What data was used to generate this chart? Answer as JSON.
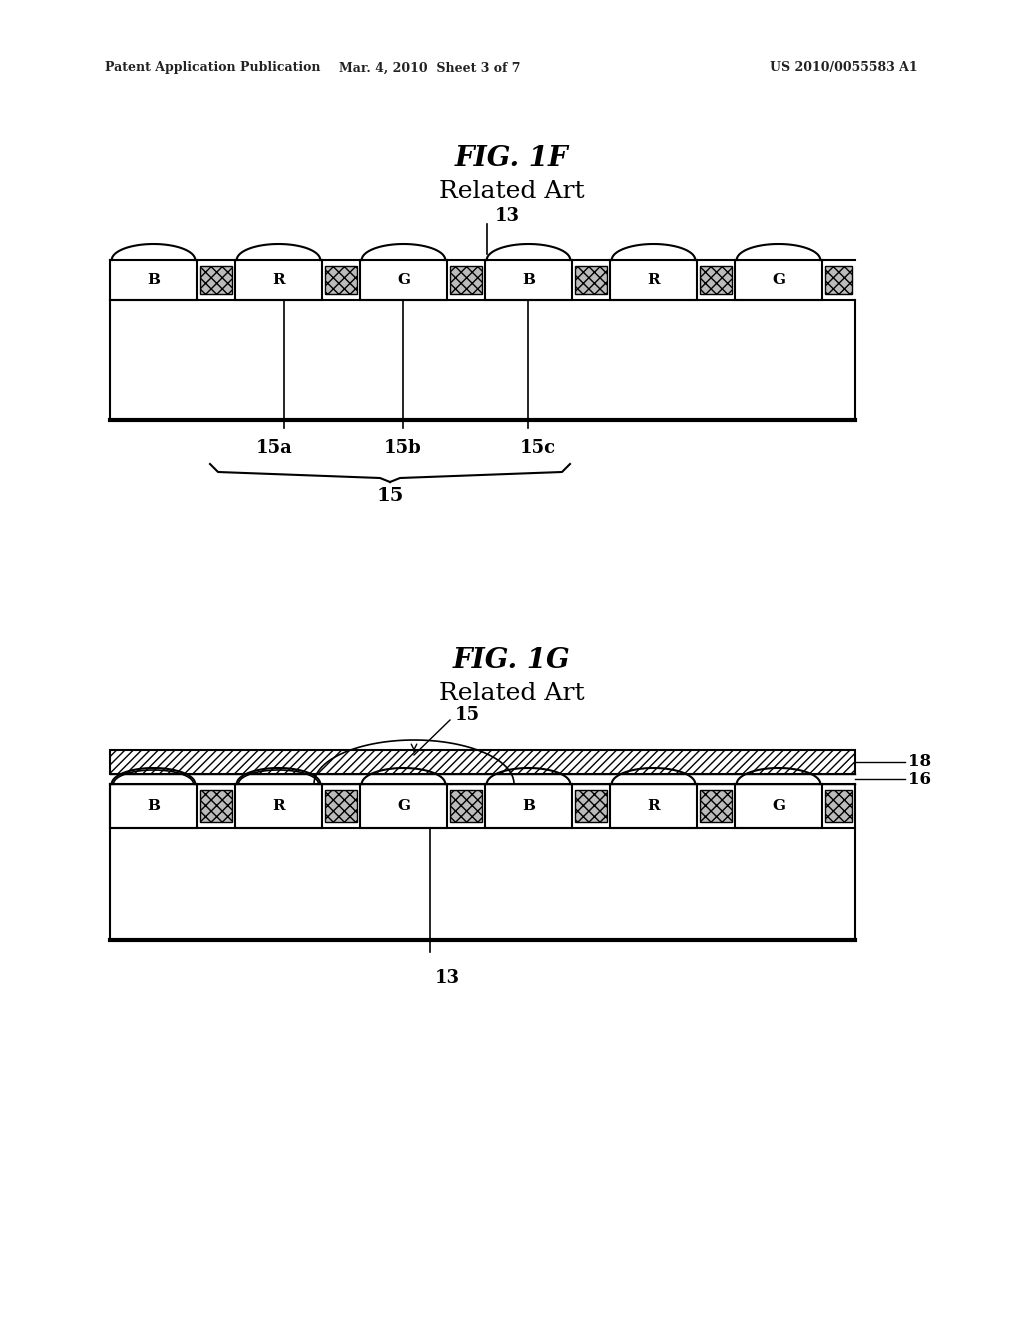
{
  "bg_color": "#ffffff",
  "header_text1": "Patent Application Publication",
  "header_text2": "Mar. 4, 2010  Sheet 3 of 7",
  "header_text3": "US 2010/0055583 A1",
  "fig1f_title": "FIG. 1F",
  "fig1f_subtitle": "Related Art",
  "fig1g_title": "FIG. 1G",
  "fig1g_subtitle": "Related Art",
  "label_color": "#000000",
  "line_color": "#000000"
}
